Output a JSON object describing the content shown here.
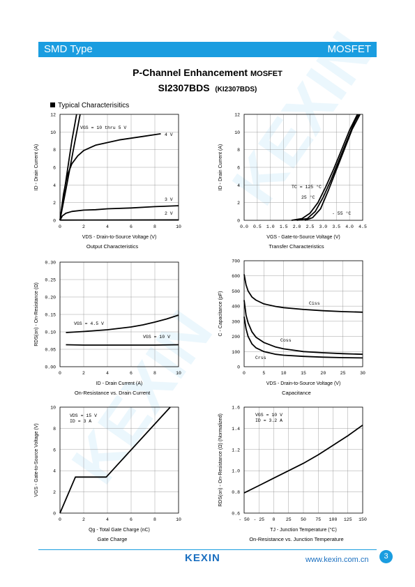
{
  "header": {
    "left": "SMD Type",
    "right": "MOSFET",
    "accent": "#1a9de0"
  },
  "title": {
    "main": "P-Channel Enhancement",
    "main_suffix": "MOSFET",
    "part": "SI2307BDS",
    "alt_part": "(KI2307BDS)"
  },
  "section": "Typical  Characterisitics",
  "footer": {
    "logo": "KEXIN",
    "url": "www.kexin.com.cn",
    "page": "3"
  },
  "chart_data": [
    {
      "id": "output",
      "type": "line",
      "caption": "Output Characteristics",
      "xlabel": "VDS - Drain-to-Source Voltage (V)",
      "ylabel": "ID - Drain Current (A)",
      "xlim": [
        0,
        10
      ],
      "ylim": [
        0,
        12
      ],
      "xticks": [
        "0",
        "2",
        "4",
        "6",
        "8",
        "10"
      ],
      "yticks": [
        "0",
        "2",
        "4",
        "6",
        "8",
        "10",
        "12"
      ],
      "series": [
        {
          "name": "VGS = 10 thru 5 V",
          "x": [
            0,
            0.5,
            1.0,
            1.4
          ],
          "y": [
            0,
            4.5,
            9,
            12
          ]
        },
        {
          "name": "VGS = 10 thru 5 V",
          "x": [
            0,
            0.6,
            1.2,
            1.7
          ],
          "y": [
            0,
            4.2,
            8.5,
            12
          ]
        },
        {
          "name": "4 V",
          "x": [
            0,
            0.3,
            0.6,
            1,
            1.5,
            2,
            3,
            4,
            5,
            6,
            7,
            8,
            8.5
          ],
          "y": [
            0,
            3,
            5,
            6.4,
            7.3,
            7.9,
            8.5,
            8.8,
            9.1,
            9.3,
            9.5,
            9.7,
            9.8
          ]
        },
        {
          "name": "3 V",
          "x": [
            0,
            0.2,
            0.5,
            1,
            2,
            3,
            4,
            6,
            8,
            10
          ],
          "y": [
            0,
            0.5,
            0.8,
            1.0,
            1.15,
            1.2,
            1.3,
            1.4,
            1.55,
            1.65
          ]
        },
        {
          "name": "2 V",
          "x": [
            0,
            10
          ],
          "y": [
            0.02,
            0.05
          ]
        }
      ],
      "annotations": [
        "VGS = 10 thru 5 V",
        "4 V",
        "3 V",
        "2 V"
      ]
    },
    {
      "id": "transfer",
      "type": "line",
      "caption": "Transfer Characteristics",
      "xlabel": "VGS - Gate-to-Source Voltage (V)",
      "ylabel": "ID - Drain Current (A)",
      "xlim": [
        0,
        4.5
      ],
      "ylim": [
        0,
        12
      ],
      "xticks": [
        "0.0",
        "0.5",
        "1.0",
        "1.5",
        "2.0",
        "2.5",
        "3.0",
        "3.5",
        "4.0",
        "4.5"
      ],
      "yticks": [
        "0",
        "2",
        "4",
        "6",
        "8",
        "10",
        "12"
      ],
      "series": [
        {
          "name": "TC = 125 °C",
          "x": [
            1.8,
            2.2,
            2.5,
            2.8,
            3.1,
            3.4,
            3.7,
            4.0,
            4.3
          ],
          "y": [
            0,
            0.2,
            0.8,
            2,
            3.8,
            5.8,
            8,
            10.2,
            12
          ]
        },
        {
          "name": "25 °C",
          "x": [
            2.0,
            2.4,
            2.7,
            3.0,
            3.3,
            3.6,
            3.9,
            4.2,
            4.35
          ],
          "y": [
            0,
            0.2,
            1.0,
            2.6,
            4.6,
            6.8,
            9.0,
            11.2,
            12
          ]
        },
        {
          "name": "-55 °C",
          "x": [
            2.3,
            2.6,
            2.9,
            3.2,
            3.5,
            3.8,
            4.1,
            4.4
          ],
          "y": [
            0,
            0.3,
            1.3,
            3.4,
            5.7,
            8.0,
            10.3,
            12
          ]
        }
      ],
      "annotations": [
        "TC = 125 °C",
        "25 °C",
        "- 55 °C"
      ]
    },
    {
      "id": "ron_id",
      "type": "line",
      "caption": "On-Resistance vs. Drain Current",
      "xlabel": "ID - Drain Current (A)",
      "ylabel": "RDS(on) - On-Resistance (Ω)",
      "xlim": [
        0,
        10
      ],
      "ylim": [
        0,
        0.3
      ],
      "xticks": [
        "0",
        "2",
        "4",
        "6",
        "8",
        "10"
      ],
      "yticks": [
        "0.00",
        "0.05",
        "0.10",
        "0.15",
        "0.20",
        "0.25",
        "0.30"
      ],
      "series": [
        {
          "name": "VGS = 4.5 V",
          "x": [
            0.5,
            2,
            4,
            6,
            7,
            8,
            9,
            10
          ],
          "y": [
            0.098,
            0.101,
            0.106,
            0.114,
            0.12,
            0.128,
            0.137,
            0.148
          ]
        },
        {
          "name": "VGS = 10 V",
          "x": [
            0.5,
            2,
            4,
            6,
            8,
            10
          ],
          "y": [
            0.063,
            0.062,
            0.062,
            0.062,
            0.062,
            0.063
          ]
        }
      ],
      "annotations": [
        "VGS = 4.5 V",
        "VGS = 10 V"
      ]
    },
    {
      "id": "capacitance",
      "type": "line",
      "caption": "Capacitance",
      "xlabel": "VDS - Drain-to-Source Voltage (V)",
      "ylabel": "C - Capacitance (pF)",
      "xlim": [
        0,
        30
      ],
      "ylim": [
        0,
        700
      ],
      "xticks": [
        "0",
        "5",
        "10",
        "15",
        "20",
        "25",
        "30"
      ],
      "yticks": [
        "0",
        "100",
        "200",
        "300",
        "400",
        "500",
        "600",
        "700"
      ],
      "series": [
        {
          "name": "Ciss",
          "x": [
            0,
            0.5,
            1,
            2,
            3,
            5,
            8,
            10,
            15,
            20,
            25,
            30
          ],
          "y": [
            610,
            540,
            500,
            460,
            440,
            415,
            398,
            390,
            378,
            370,
            364,
            360
          ]
        },
        {
          "name": "Coss",
          "x": [
            0,
            0.5,
            1,
            2,
            3,
            5,
            8,
            10,
            15,
            20,
            25,
            30
          ],
          "y": [
            440,
            340,
            290,
            230,
            195,
            160,
            130,
            118,
            100,
            92,
            86,
            82
          ]
        },
        {
          "name": "Crss",
          "x": [
            0,
            0.5,
            1,
            2,
            3,
            5,
            8,
            10,
            15,
            20,
            25,
            30
          ],
          "y": [
            330,
            250,
            200,
            150,
            125,
            100,
            82,
            76,
            68,
            63,
            60,
            58
          ]
        }
      ],
      "annotations": [
        "Ciss",
        "Coss",
        "Crss"
      ]
    },
    {
      "id": "gate_charge",
      "type": "line",
      "caption": "Gate Charge",
      "xlabel": "Qg - Total Gate Charge (nC)",
      "ylabel": "VGS - Gate-to-Source Voltage (V)",
      "xlim": [
        0,
        10
      ],
      "ylim": [
        0,
        10
      ],
      "xticks": [
        "0",
        "2",
        "4",
        "6",
        "8",
        "10"
      ],
      "yticks": [
        "0",
        "2",
        "4",
        "6",
        "8",
        "10"
      ],
      "series": [
        {
          "name": "VDS = 15 V, ID = 3 A",
          "x": [
            0,
            1.3,
            3.9,
            9.3
          ],
          "y": [
            0,
            3.4,
            3.4,
            10
          ]
        }
      ],
      "annotations": [
        "VDS = 15 V",
        "ID = 3 A"
      ]
    },
    {
      "id": "ron_tj",
      "type": "line",
      "caption": "On-Resistance vs. Junction Temperature",
      "xlabel": "TJ - Junction Temperature (°C)",
      "ylabel": "RDS(on) - On-Resistance (Ω) (Normalized)",
      "xlim": [
        -50,
        150
      ],
      "ylim": [
        0.6,
        1.6
      ],
      "xticks": [
        "- 50",
        "- 25",
        "0",
        "25",
        "50",
        "75",
        "100",
        "125",
        "150"
      ],
      "yticks": [
        "0.6",
        "0.8",
        "1.0",
        "1.2",
        "1.4",
        "1.6"
      ],
      "series": [
        {
          "name": "VGS = 10 V, ID = 3.2 A",
          "x": [
            -50,
            -25,
            0,
            25,
            50,
            75,
            100,
            125,
            150
          ],
          "y": [
            0.79,
            0.86,
            0.93,
            1.0,
            1.07,
            1.15,
            1.24,
            1.33,
            1.43
          ]
        }
      ],
      "annotations": [
        "VGS = 10 V",
        "ID = 3.2 A"
      ]
    }
  ]
}
